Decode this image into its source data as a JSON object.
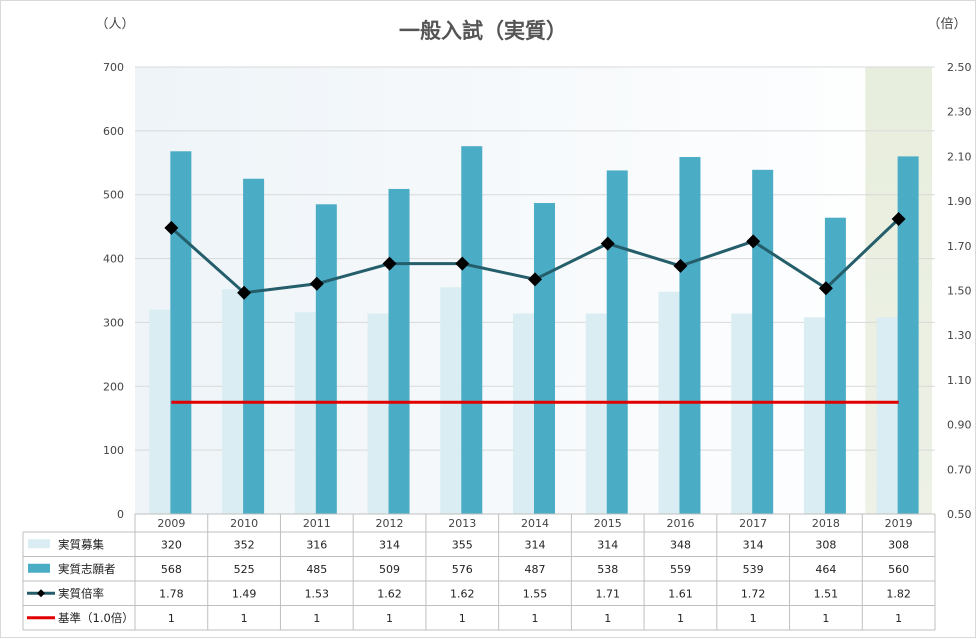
{
  "chart_data": {
    "type": "bar",
    "title": "一般入試（実質）",
    "y_left_unit": "（人）",
    "y_right_unit": "（倍）",
    "categories": [
      "2009",
      "2010",
      "2011",
      "2012",
      "2013",
      "2014",
      "2015",
      "2016",
      "2017",
      "2018",
      "2019"
    ],
    "ylim_left": [
      0,
      700
    ],
    "ylim_right": [
      0.5,
      2.5
    ],
    "yticks_left": [
      "0",
      "100",
      "200",
      "300",
      "400",
      "500",
      "600",
      "700"
    ],
    "yticks_right": [
      "0.50",
      "0.70",
      "0.90",
      "1.10",
      "1.30",
      "1.50",
      "1.70",
      "1.90",
      "2.10",
      "2.30",
      "2.50"
    ],
    "grid": true,
    "highlight_category": "2019",
    "series": [
      {
        "name": "実質募集",
        "kind": "bar",
        "axis": "left",
        "color": "#daedf2",
        "values": [
          320,
          352,
          316,
          314,
          355,
          314,
          314,
          348,
          314,
          308,
          308
        ],
        "labels": [
          "320",
          "352",
          "316",
          "314",
          "355",
          "314",
          "314",
          "348",
          "314",
          "308",
          "308"
        ]
      },
      {
        "name": "実質志願者",
        "kind": "bar",
        "axis": "left",
        "color": "#4bacc6",
        "values": [
          568,
          525,
          485,
          509,
          576,
          487,
          538,
          559,
          539,
          464,
          560
        ],
        "labels": [
          "568",
          "525",
          "485",
          "509",
          "576",
          "487",
          "538",
          "559",
          "539",
          "464",
          "560"
        ]
      },
      {
        "name": "実質倍率",
        "kind": "line",
        "axis": "right",
        "color": "#255e6b",
        "marker": "diamond",
        "values": [
          1.78,
          1.49,
          1.53,
          1.62,
          1.62,
          1.55,
          1.71,
          1.61,
          1.72,
          1.51,
          1.82
        ],
        "labels": [
          "1.78",
          "1.49",
          "1.53",
          "1.62",
          "1.62",
          "1.55",
          "1.71",
          "1.61",
          "1.72",
          "1.51",
          "1.82"
        ]
      },
      {
        "name": "基準（1.0倍）",
        "kind": "line",
        "axis": "right",
        "color": "#e00000",
        "values": [
          1,
          1,
          1,
          1,
          1,
          1,
          1,
          1,
          1,
          1,
          1
        ],
        "labels": [
          "1",
          "1",
          "1",
          "1",
          "1",
          "1",
          "1",
          "1",
          "1",
          "1",
          "1"
        ]
      }
    ]
  }
}
